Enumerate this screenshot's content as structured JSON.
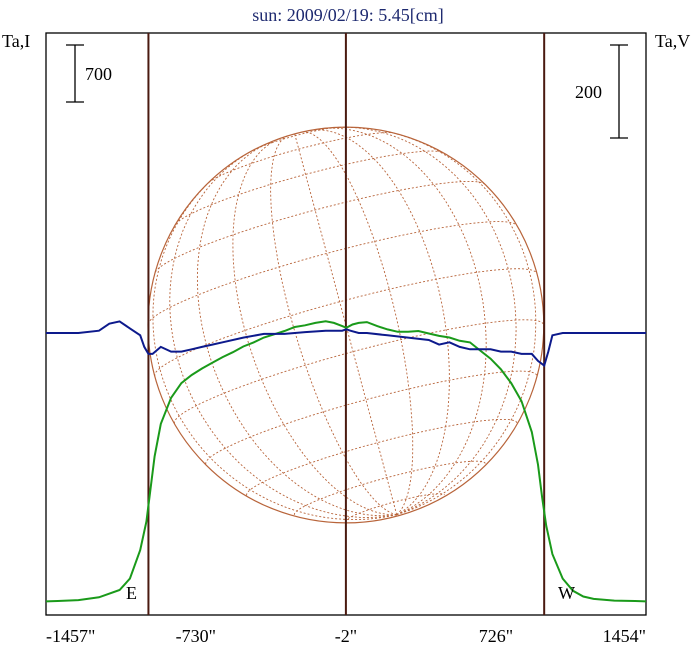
{
  "title": "sun: 2009/02/19: 5.45[cm]",
  "left_axis_label": "Ta,I",
  "right_axis_label": "Ta,V",
  "left_scale_label": "700",
  "right_scale_label": "200",
  "east_label": "E",
  "west_label": "W",
  "colors": {
    "intensity": "#1a9a1a",
    "polarization": "#0d1a8c",
    "limb_lines": "#4a1a10",
    "disk": "#b8643a",
    "title": "#1e2a70",
    "text": "#000000"
  },
  "chart_data": {
    "type": "line",
    "title": "sun: 2009/02/19: 5.45[cm]",
    "x_unit": "arcsec",
    "xlim": [
      -1457,
      1454
    ],
    "x_ticks": [
      -1457,
      -730,
      -2,
      726,
      1454
    ],
    "x_tick_labels": [
      "-1457\"",
      "-730\"",
      "-2\"",
      "726\"",
      "1454\""
    ],
    "vertical_lines": [
      -960,
      -2,
      960
    ],
    "left_scale_bar": {
      "label": "700"
    },
    "right_scale_bar": {
      "label": "200"
    },
    "disk": {
      "center_x": -2,
      "radius": 960,
      "meridian_rotation_deg": 15,
      "grid": "dotted lat/long"
    },
    "series": [
      {
        "name": "Ta,I",
        "axis": "left",
        "x": [
          -1457,
          -1400,
          -1300,
          -1200,
          -1100,
          -1050,
          -1000,
          -970,
          -950,
          -930,
          -900,
          -850,
          -800,
          -750,
          -700,
          -650,
          -600,
          -550,
          -500,
          -450,
          -400,
          -350,
          -300,
          -250,
          -200,
          -150,
          -100,
          -60,
          -20,
          0,
          30,
          60,
          100,
          150,
          200,
          250,
          300,
          350,
          400,
          450,
          500,
          550,
          600,
          650,
          700,
          750,
          800,
          850,
          900,
          930,
          950,
          970,
          1000,
          1050,
          1100,
          1150,
          1200,
          1300,
          1400,
          1454
        ],
        "values": [
          20,
          25,
          35,
          70,
          160,
          300,
          650,
          1000,
          1400,
          1800,
          2200,
          2520,
          2700,
          2800,
          2880,
          2950,
          3020,
          3080,
          3150,
          3200,
          3260,
          3300,
          3340,
          3390,
          3410,
          3440,
          3460,
          3440,
          3400,
          3380,
          3420,
          3440,
          3450,
          3400,
          3360,
          3330,
          3330,
          3340,
          3310,
          3280,
          3260,
          3220,
          3200,
          3100,
          3000,
          2870,
          2700,
          2480,
          2100,
          1700,
          1300,
          950,
          600,
          300,
          150,
          80,
          50,
          30,
          25,
          20
        ]
      },
      {
        "name": "Ta,V",
        "axis": "right",
        "x": [
          -1457,
          -1400,
          -1300,
          -1200,
          -1150,
          -1100,
          -1050,
          -1000,
          -980,
          -960,
          -940,
          -900,
          -850,
          -800,
          -750,
          -700,
          -650,
          -600,
          -500,
          -400,
          -300,
          -200,
          -100,
          -20,
          0,
          20,
          60,
          100,
          200,
          300,
          400,
          450,
          500,
          550,
          600,
          650,
          700,
          750,
          800,
          850,
          900,
          930,
          960,
          980,
          1000,
          1050,
          1100,
          1200,
          1300,
          1400,
          1454
        ],
        "values": [
          0,
          0,
          0,
          5,
          20,
          25,
          10,
          -5,
          -30,
          -45,
          -45,
          -30,
          -40,
          -40,
          -35,
          -30,
          -25,
          -20,
          -10,
          -2,
          -2,
          2,
          5,
          5,
          8,
          5,
          0,
          0,
          -5,
          -10,
          -15,
          -25,
          -20,
          -30,
          -35,
          -35,
          -35,
          -40,
          -40,
          -45,
          -45,
          -60,
          -70,
          -40,
          -5,
          0,
          0,
          0,
          0,
          0,
          0
        ]
      }
    ],
    "grid": false
  }
}
